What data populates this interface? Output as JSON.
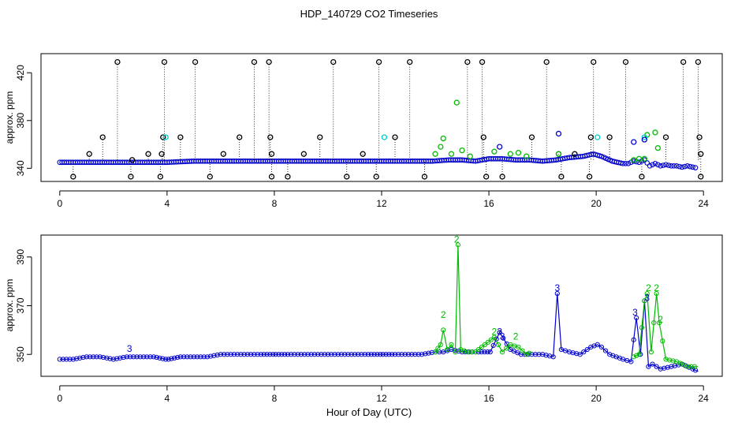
{
  "figure": {
    "title": "HDP_140729  CO2 Timeseries",
    "xlabel": "Hour of Day (UTC)"
  },
  "chart_data": [
    {
      "type": "scatter",
      "panel": "top",
      "ylabel": "approx. ppm",
      "xlim": [
        -0.7,
        24.7
      ],
      "ylim": [
        329,
        436
      ],
      "xticks": [
        0,
        4,
        8,
        12,
        16,
        20,
        24
      ],
      "yticks": [
        340,
        380,
        420
      ],
      "point_style": "open circles with dotted drop lines for flagged points",
      "colors": {
        "black": "#000000",
        "blue": "#0000cc",
        "green": "#00bb00",
        "cyan": "#00cccc"
      },
      "series": [
        {
          "color_key": "blue",
          "description": "baseline 1-minute data",
          "segments": [
            {
              "x": [
                0,
                1,
                2,
                3,
                4,
                5,
                6,
                7,
                8,
                9,
                10,
                11,
                12,
                13,
                13.9,
                14.5,
                15,
                15.5,
                16,
                16.5,
                17,
                17.5,
                18,
                18.5,
                19,
                19.5,
                19.9,
                20.2,
                20.6,
                21,
                21.2,
                21.4,
                21.6,
                21.8,
                22,
                22.2,
                22.4,
                22.6,
                22.8,
                23,
                23.2,
                23.4,
                23.6,
                23.8
              ],
              "y": [
                345,
                345,
                345,
                345,
                345,
                346,
                346,
                346,
                346,
                346,
                346,
                346,
                346,
                346,
                346,
                347,
                347,
                346,
                348,
                348,
                347,
                347,
                346,
                347,
                349,
                350,
                352,
                350,
                346,
                344,
                344,
                346,
                345,
                347,
                342,
                344,
                342,
                343,
                342,
                342,
                341,
                342,
                341,
                340
              ]
            }
          ]
        },
        {
          "color_key": "black",
          "description": "flagged outliers (high)",
          "points": [
            {
              "x": 1.1,
              "y": 352
            },
            {
              "x": 1.6,
              "y": 366
            },
            {
              "x": 2.15,
              "y": 429
            },
            {
              "x": 2.7,
              "y": 347
            },
            {
              "x": 3.3,
              "y": 352
            },
            {
              "x": 3.8,
              "y": 352
            },
            {
              "x": 3.85,
              "y": 366
            },
            {
              "x": 3.9,
              "y": 429
            },
            {
              "x": 4.5,
              "y": 366
            },
            {
              "x": 5.05,
              "y": 429
            },
            {
              "x": 6.1,
              "y": 352
            },
            {
              "x": 6.7,
              "y": 366
            },
            {
              "x": 7.25,
              "y": 429
            },
            {
              "x": 7.8,
              "y": 429
            },
            {
              "x": 7.85,
              "y": 366
            },
            {
              "x": 7.9,
              "y": 352
            },
            {
              "x": 9.1,
              "y": 352
            },
            {
              "x": 9.7,
              "y": 366
            },
            {
              "x": 10.2,
              "y": 429
            },
            {
              "x": 11.3,
              "y": 352
            },
            {
              "x": 11.9,
              "y": 429
            },
            {
              "x": 12.5,
              "y": 366
            },
            {
              "x": 13.05,
              "y": 429
            },
            {
              "x": 15.2,
              "y": 429
            },
            {
              "x": 15.75,
              "y": 429
            },
            {
              "x": 15.8,
              "y": 366
            },
            {
              "x": 17.6,
              "y": 366
            },
            {
              "x": 18.15,
              "y": 429
            },
            {
              "x": 18.6,
              "y": 352
            },
            {
              "x": 19.2,
              "y": 352
            },
            {
              "x": 19.8,
              "y": 366
            },
            {
              "x": 19.9,
              "y": 429
            },
            {
              "x": 20.5,
              "y": 366
            },
            {
              "x": 21.1,
              "y": 429
            },
            {
              "x": 22.6,
              "y": 366
            },
            {
              "x": 23.25,
              "y": 429
            },
            {
              "x": 23.8,
              "y": 429
            },
            {
              "x": 23.85,
              "y": 366
            },
            {
              "x": 23.9,
              "y": 352
            }
          ]
        },
        {
          "color_key": "black",
          "description": "flagged outliers (low)",
          "points": [
            {
              "x": 0.5,
              "y": 333
            },
            {
              "x": 2.65,
              "y": 333
            },
            {
              "x": 3.75,
              "y": 333
            },
            {
              "x": 5.6,
              "y": 333
            },
            {
              "x": 7.9,
              "y": 333
            },
            {
              "x": 8.5,
              "y": 333
            },
            {
              "x": 10.7,
              "y": 333
            },
            {
              "x": 11.8,
              "y": 333
            },
            {
              "x": 13.6,
              "y": 333
            },
            {
              "x": 15.9,
              "y": 333
            },
            {
              "x": 16.5,
              "y": 333
            },
            {
              "x": 18.7,
              "y": 333
            },
            {
              "x": 19.75,
              "y": 333
            },
            {
              "x": 21.7,
              "y": 333
            },
            {
              "x": 23.9,
              "y": 333
            }
          ]
        },
        {
          "color_key": "green",
          "description": "secondary points",
          "points": [
            {
              "x": 14.0,
              "y": 352
            },
            {
              "x": 14.2,
              "y": 358
            },
            {
              "x": 14.3,
              "y": 365
            },
            {
              "x": 14.6,
              "y": 352
            },
            {
              "x": 14.8,
              "y": 395
            },
            {
              "x": 15.0,
              "y": 355
            },
            {
              "x": 15.3,
              "y": 350
            },
            {
              "x": 16.2,
              "y": 354
            },
            {
              "x": 16.8,
              "y": 352
            },
            {
              "x": 17.1,
              "y": 353
            },
            {
              "x": 17.4,
              "y": 350
            },
            {
              "x": 18.6,
              "y": 352
            },
            {
              "x": 21.4,
              "y": 347
            },
            {
              "x": 21.6,
              "y": 348
            },
            {
              "x": 21.8,
              "y": 348
            },
            {
              "x": 21.9,
              "y": 368
            },
            {
              "x": 22.2,
              "y": 370
            },
            {
              "x": 22.3,
              "y": 357
            }
          ]
        },
        {
          "color_key": "cyan",
          "description": "tertiary points",
          "points": [
            {
              "x": 3.95,
              "y": 366
            },
            {
              "x": 12.1,
              "y": 366
            },
            {
              "x": 20.05,
              "y": 366
            },
            {
              "x": 21.8,
              "y": 366
            }
          ]
        },
        {
          "color_key": "blue",
          "description": "elevated blue points",
          "points": [
            {
              "x": 16.4,
              "y": 358
            },
            {
              "x": 18.6,
              "y": 369
            },
            {
              "x": 21.4,
              "y": 362
            },
            {
              "x": 21.8,
              "y": 364
            }
          ]
        }
      ]
    },
    {
      "type": "line",
      "panel": "bottom",
      "ylabel": "approx. ppm",
      "xlim": [
        -0.7,
        24.7
      ],
      "ylim": [
        341,
        399
      ],
      "xticks": [
        0,
        4,
        8,
        12,
        16,
        20,
        24
      ],
      "yticks": [
        350,
        370,
        390
      ],
      "series": [
        {
          "color_key": "blue",
          "label": "3",
          "x": [
            0,
            0.5,
            1,
            1.5,
            2,
            2.5,
            3,
            3.5,
            3.95,
            4.05,
            4.5,
            5,
            5.5,
            6,
            6.5,
            7,
            7.5,
            7.95,
            8.05,
            8.5,
            9,
            9.5,
            10,
            10.5,
            11,
            11.5,
            11.95,
            12.05,
            12.5,
            13,
            13.5,
            14,
            14.3,
            14.6,
            15,
            15.5,
            15.95,
            16.05,
            16.4,
            16.8,
            17.2,
            17.6,
            18,
            18.4,
            18.55,
            18.7,
            19,
            19.4,
            19.8,
            20.05,
            20.2,
            20.5,
            21,
            21.3,
            21.5,
            21.65,
            21.8,
            21.95,
            22.1,
            22.4,
            22.8,
            23.2,
            23.6,
            23.8
          ],
          "y": [
            348,
            348,
            349,
            349,
            348,
            349,
            349,
            349,
            348,
            348,
            349,
            349,
            349,
            350,
            350,
            350,
            350,
            350,
            350,
            350,
            350,
            350,
            350,
            350,
            350,
            350,
            350,
            350,
            350,
            350,
            350,
            351,
            351,
            352,
            351,
            351,
            351,
            351,
            359,
            352,
            350,
            350,
            350,
            349,
            375,
            352,
            351,
            350,
            353,
            354,
            353,
            350,
            348,
            347,
            365,
            350,
            372,
            345,
            346,
            344,
            345,
            346,
            344,
            343
          ]
        },
        {
          "color_key": "green",
          "label": "2",
          "x": [
            14.0,
            14.2,
            14.3,
            14.45,
            14.6,
            14.75,
            14.85,
            14.95,
            15.2,
            15.5,
            16.2,
            16.5,
            16.8,
            17.1,
            17.4,
            17.6,
            21.4,
            21.6,
            21.8,
            21.9,
            22.05,
            22.25,
            22.35,
            22.6,
            23.0,
            23.4,
            23.8
          ],
          "y": [
            351,
            354,
            360,
            352,
            354,
            351,
            395,
            352,
            351,
            351,
            357,
            351,
            354,
            353,
            350,
            351,
            349,
            350,
            372,
            375,
            351,
            375,
            363,
            348,
            347,
            345,
            345
          ]
        }
      ],
      "text_labels": [
        {
          "text": "3",
          "x": 2.6,
          "y": 351
        },
        {
          "text": "2",
          "x": 14.3,
          "y": 365
        },
        {
          "text": "2",
          "x": 14.8,
          "y": 396
        },
        {
          "text": "2",
          "x": 16.2,
          "y": 358
        },
        {
          "text": "3",
          "x": 16.4,
          "y": 358
        },
        {
          "text": "3",
          "x": 16.5,
          "y": 356
        },
        {
          "text": "2",
          "x": 17.0,
          "y": 356
        },
        {
          "text": "3",
          "x": 18.55,
          "y": 376
        },
        {
          "text": "3",
          "x": 21.45,
          "y": 366
        },
        {
          "text": "3",
          "x": 21.9,
          "y": 372
        },
        {
          "text": "2",
          "x": 21.95,
          "y": 376
        },
        {
          "text": "2",
          "x": 22.25,
          "y": 376
        },
        {
          "text": "2",
          "x": 22.4,
          "y": 363
        }
      ]
    }
  ]
}
